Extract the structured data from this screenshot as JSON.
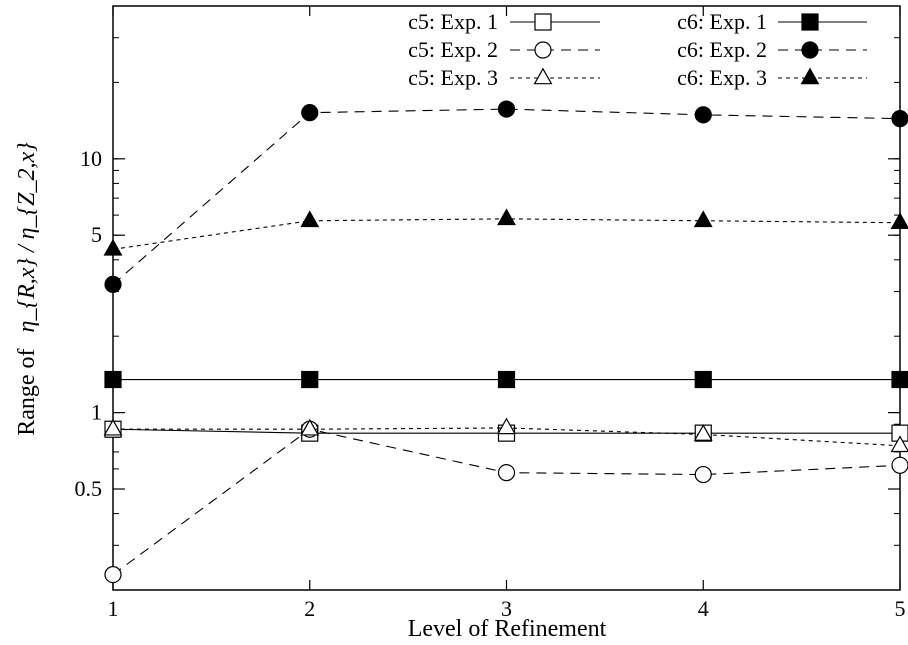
{
  "chart_data": {
    "type": "line",
    "xlabel": "Level of Refinement",
    "ylabel_prefix": "Range of",
    "ylabel_math": "η_{R,x} / η_{Z_2,x}",
    "y_scale": "log",
    "xlim": [
      1,
      5
    ],
    "ylim": [
      0.2,
      40
    ],
    "grid": false,
    "legend_placement": "top-right",
    "x_ticks": [
      1,
      2,
      3,
      4,
      5
    ],
    "y_ticks": [
      {
        "value": 0.5,
        "label": "0.5"
      },
      {
        "value": 1,
        "label": "1"
      },
      {
        "value": 5,
        "label": "5"
      },
      {
        "value": 10,
        "label": "10"
      }
    ],
    "x": [
      1,
      2,
      3,
      4,
      5
    ],
    "series": [
      {
        "name": "c5: Exp. 1",
        "marker": "square-open",
        "dash": "solid",
        "values": [
          0.86,
          0.83,
          0.83,
          0.83,
          0.83
        ]
      },
      {
        "name": "c5: Exp. 2",
        "marker": "circle-open",
        "dash": "longdash",
        "values": [
          0.23,
          0.86,
          0.58,
          0.57,
          0.62
        ]
      },
      {
        "name": "c5: Exp. 3",
        "marker": "triangle-open",
        "dash": "shortdash",
        "values": [
          0.86,
          0.86,
          0.87,
          0.82,
          0.74
        ]
      },
      {
        "name": "c6: Exp. 1",
        "marker": "square-filled",
        "dash": "solid",
        "values": [
          1.35,
          1.35,
          1.35,
          1.35,
          1.35
        ]
      },
      {
        "name": "c6: Exp. 2",
        "marker": "circle-filled",
        "dash": "longdash",
        "values": [
          3.2,
          15.2,
          15.7,
          14.9,
          14.4
        ]
      },
      {
        "name": "c6: Exp. 3",
        "marker": "triangle-filled",
        "dash": "shortdash",
        "values": [
          4.4,
          5.7,
          5.8,
          5.7,
          5.6
        ]
      }
    ]
  }
}
